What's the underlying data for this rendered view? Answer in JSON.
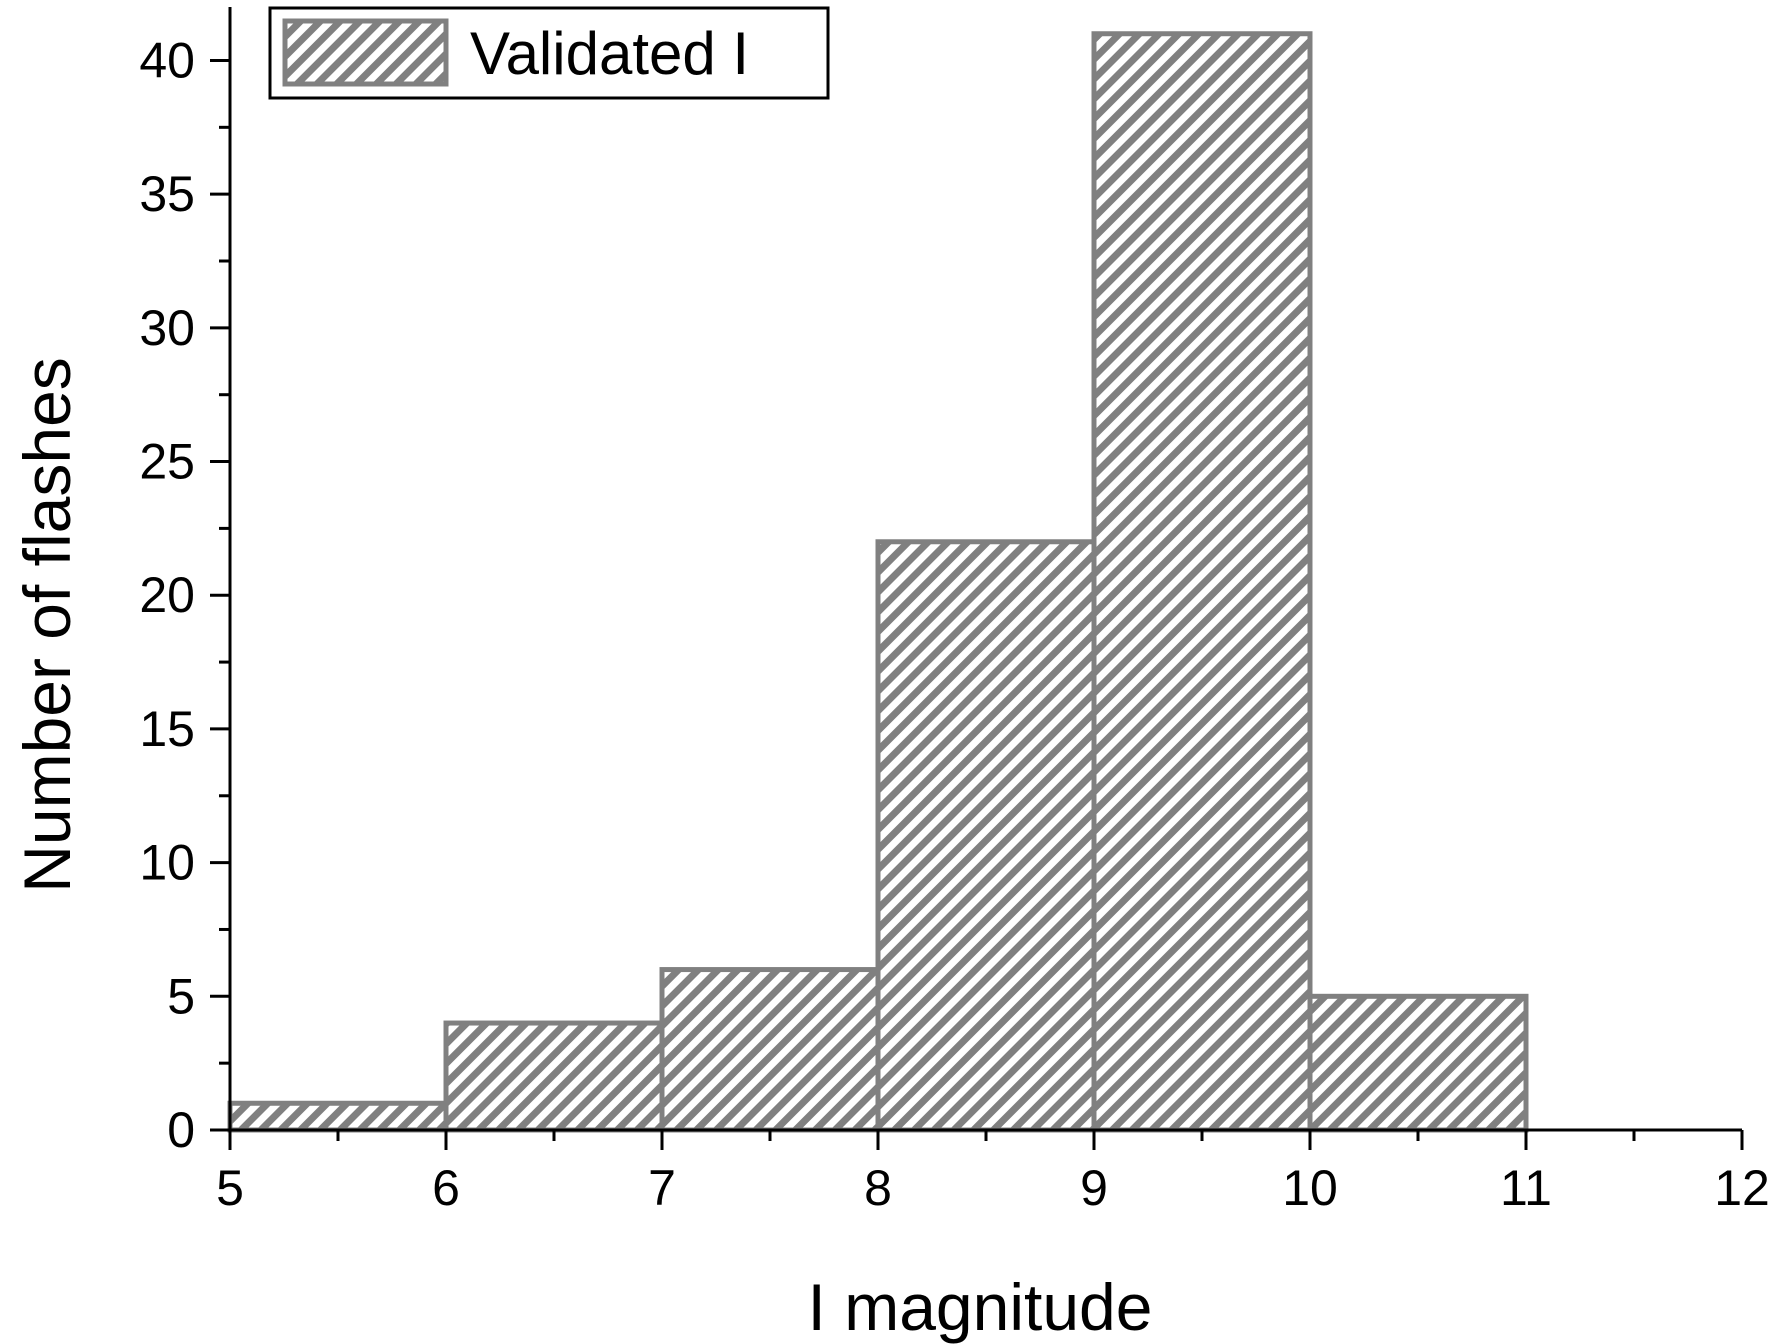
{
  "chart_data": {
    "type": "bar",
    "subtype": "histogram",
    "bin_edges": [
      5,
      6,
      7,
      8,
      9,
      10,
      11
    ],
    "series": [
      {
        "name": "Validated I",
        "values": [
          1,
          4,
          6,
          22,
          41,
          5
        ]
      }
    ],
    "xlabel": "I magnitude",
    "ylabel": "Number of flashes",
    "xlim": [
      5,
      12
    ],
    "ylim": [
      0,
      42
    ],
    "x_ticks": [
      5,
      6,
      7,
      8,
      9,
      10,
      11,
      12
    ],
    "y_ticks": [
      0,
      5,
      10,
      15,
      20,
      25,
      30,
      35,
      40
    ],
    "y_minor_step": 2.5,
    "grid": false,
    "legend_position": "top-left",
    "bar_fill": "hatched diagonal",
    "colors": {
      "bar_stroke": "#808080",
      "hatch": "#808080",
      "axis": "#000000"
    }
  }
}
